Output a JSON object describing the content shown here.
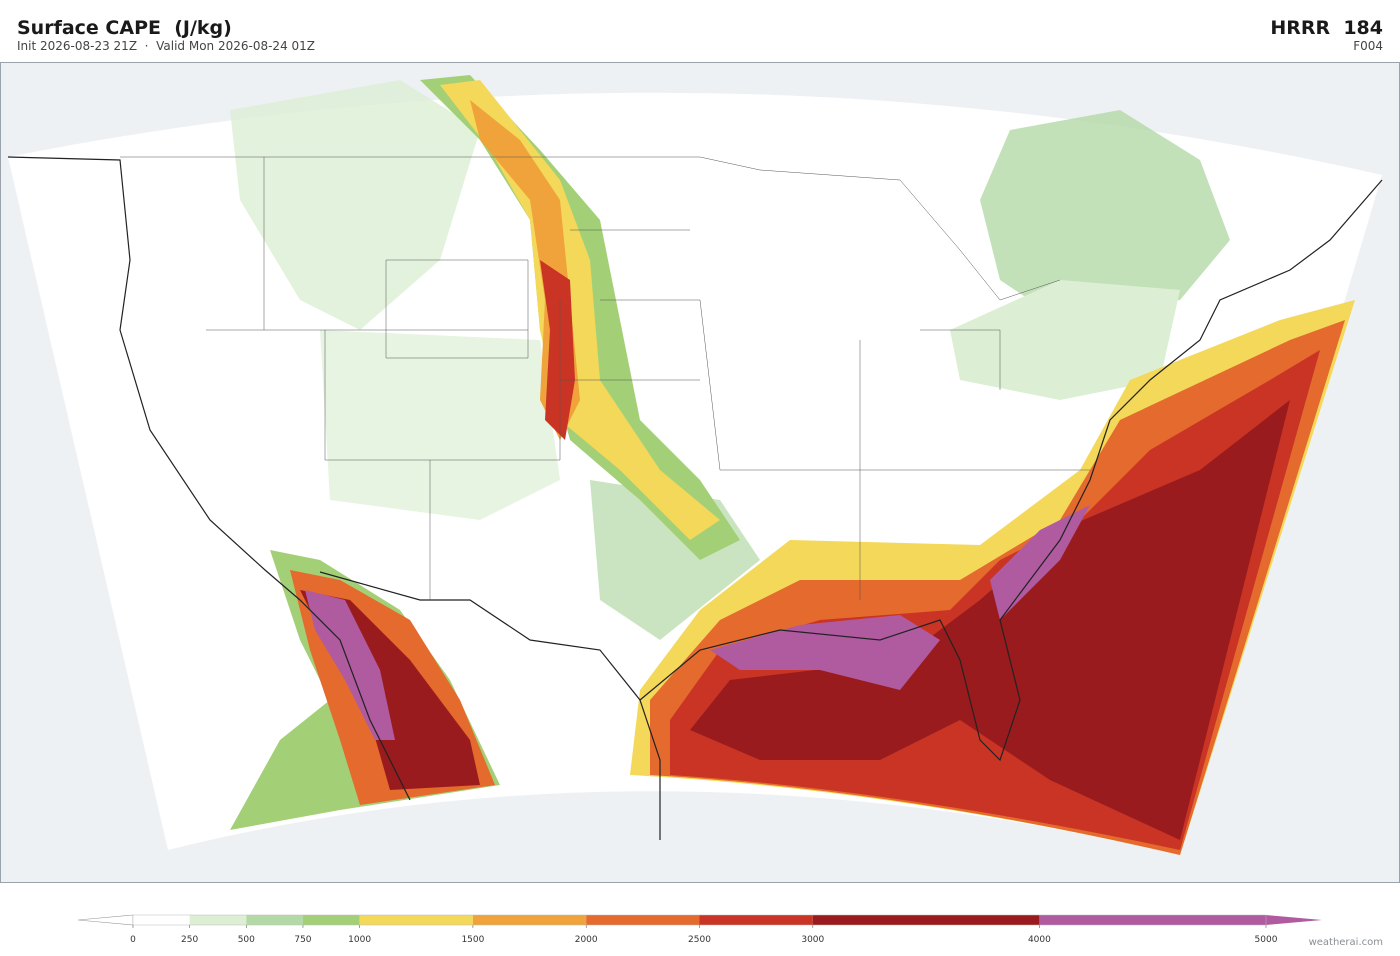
{
  "header": {
    "title": "Surface CAPE  (J/kg)",
    "subtitle": "Init 2026-08-23 21Z  ·  Valid Mon 2026-08-24 01Z",
    "model": "HRRR  184",
    "forecast_hour": "F004"
  },
  "colorbar": {
    "ticks": [
      0,
      250,
      500,
      750,
      1000,
      1500,
      2000,
      2500,
      3000,
      4000,
      5000
    ],
    "colors": [
      "#ffffff",
      "#dcefd4",
      "#b3d9a6",
      "#a3d077",
      "#f4d85a",
      "#f0a33a",
      "#e46a2e",
      "#c93424",
      "#9a1b1e",
      "#b05aa0"
    ]
  },
  "footer": {
    "credit": "weatherai.com"
  }
}
